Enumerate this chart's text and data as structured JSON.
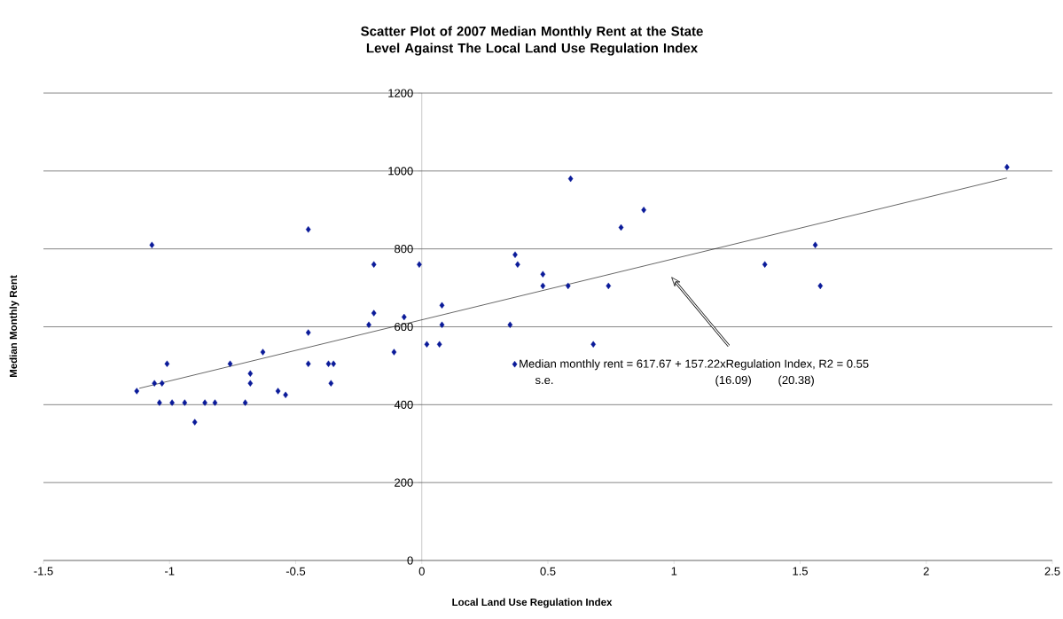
{
  "chart_data": {
    "type": "scatter",
    "title": "Scatter Plot of 2007 Median Monthly Rent at the State Level Against The Local Land Use Regulation Index",
    "xlabel": "Local Land Use Regulation Index",
    "ylabel": "Median Monthly Rent",
    "xlim": [
      -1.5,
      2.5
    ],
    "xticks": [
      -1.5,
      -1,
      -0.5,
      0,
      0.5,
      1,
      1.5,
      2,
      2.5
    ],
    "ylim": [
      0,
      1200
    ],
    "yticks": [
      0,
      200,
      400,
      600,
      800,
      1000,
      1200
    ],
    "grid": "y",
    "legend": "right",
    "marker": "diamond",
    "annotations": [
      "s.e.",
      "(16.09)",
      "(20.38)"
    ],
    "series": [
      {
        "name": "Median monthly rent = 617.67 + 157.22xRegulation Index, R2 = 0.55",
        "color": "#0a1a99",
        "x": [
          -1.13,
          -1.07,
          -1.06,
          -1.03,
          -1.04,
          -1.01,
          -0.99,
          -0.94,
          -0.9,
          -0.86,
          -0.82,
          -0.76,
          -0.7,
          -0.68,
          -0.68,
          -0.63,
          -0.57,
          -0.54,
          -0.45,
          -0.45,
          -0.45,
          -0.36,
          -0.37,
          -0.35,
          -0.21,
          -0.19,
          -0.19,
          -0.11,
          -0.07,
          -0.01,
          0.02,
          0.07,
          0.08,
          0.08,
          0.35,
          0.37,
          0.38,
          0.48,
          0.48,
          0.58,
          0.59,
          0.68,
          0.74,
          0.79,
          0.88,
          1.36,
          1.56,
          1.58,
          2.32
        ],
        "values": [
          435,
          810,
          455,
          455,
          405,
          505,
          405,
          405,
          355,
          405,
          405,
          505,
          405,
          480,
          455,
          535,
          435,
          425,
          585,
          505,
          850,
          455,
          505,
          505,
          605,
          760,
          635,
          535,
          625,
          760,
          555,
          555,
          605,
          655,
          605,
          785,
          760,
          735,
          705,
          705,
          980,
          555,
          705,
          855,
          900,
          760,
          810,
          705,
          1010
        ]
      },
      {
        "type": "line",
        "color": "#000000",
        "marker": "none",
        "x": [
          -1.12,
          2.32
        ],
        "values": [
          442,
          982
        ]
      }
    ]
  }
}
